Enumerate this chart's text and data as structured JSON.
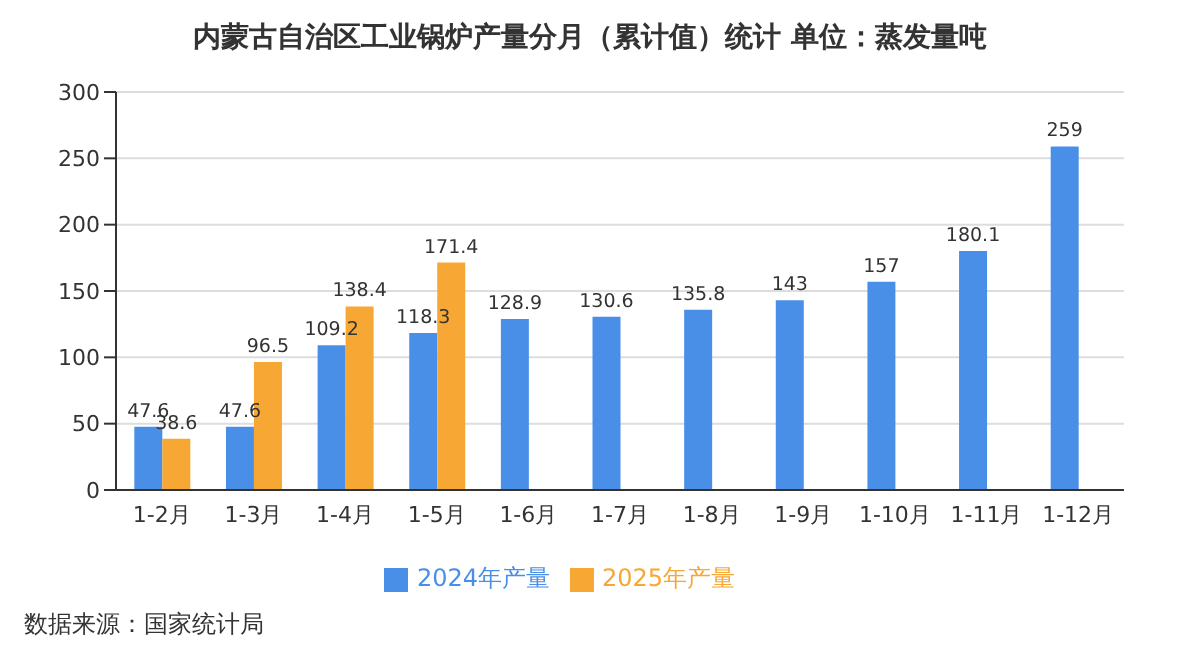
{
  "chart_data": {
    "type": "bar",
    "title": "内蒙古自治区工业锅炉产量分月（累计值）统计  单位：蒸发量吨",
    "categories": [
      "1-2月",
      "1-3月",
      "1-4月",
      "1-5月",
      "1-6月",
      "1-7月",
      "1-8月",
      "1-9月",
      "1-10月",
      "1-11月",
      "1-12月"
    ],
    "series": [
      {
        "name": "2024年产量",
        "color": "#4a8fe7",
        "values": [
          47.6,
          47.6,
          109.2,
          118.3,
          128.9,
          130.6,
          135.8,
          143,
          157,
          180.1,
          259
        ]
      },
      {
        "name": "2025年产量",
        "color": "#f7a733",
        "values": [
          38.6,
          96.5,
          138.4,
          171.4,
          null,
          null,
          null,
          null,
          null,
          null,
          null
        ]
      }
    ],
    "ylim": [
      0,
      300
    ],
    "yticks": [
      0,
      50,
      100,
      150,
      200,
      250,
      300
    ],
    "grid": "y",
    "legend": "bottom",
    "data_labels": true,
    "annotations": [
      "数据来源：国家统计局"
    ]
  }
}
